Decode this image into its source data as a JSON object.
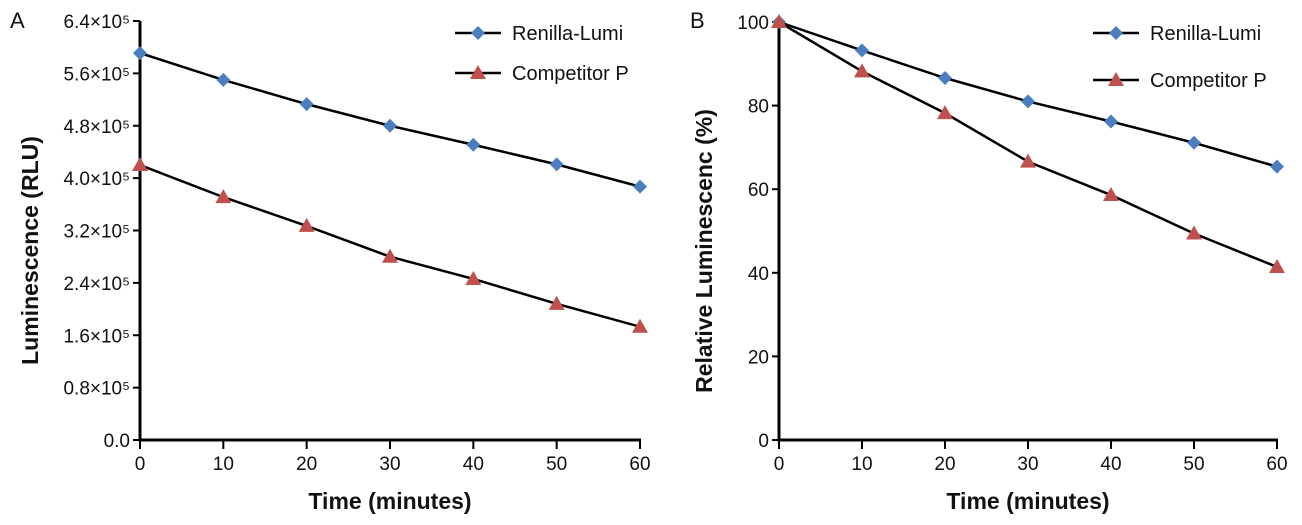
{
  "chart_data": [
    {
      "type": "line",
      "panel_label": "A",
      "xlabel": "Time (minutes)",
      "ylabel": "Luminescence (RLU)",
      "x": [
        0,
        10,
        20,
        30,
        40,
        50,
        60
      ],
      "xlim": [
        0,
        60
      ],
      "ylim": [
        0,
        640000
      ],
      "x_ticks": [
        "0",
        "10",
        "20",
        "30",
        "40",
        "50",
        "60"
      ],
      "y_tick_values": [
        0,
        80000,
        160000,
        240000,
        320000,
        400000,
        480000,
        560000,
        640000
      ],
      "y_ticks": [
        "0.0",
        "0.8×10⁵",
        "1.6×10⁵",
        "2.4×10⁵",
        "3.2×10⁵",
        "4.0×10⁵",
        "4.8×10⁵",
        "5.6×10⁵",
        "6.4×10⁵"
      ],
      "grid": false,
      "legend_position": "top-right",
      "series": [
        {
          "name": "Renilla-Lumi",
          "marker": "diamond",
          "color": "#4a7ebf",
          "values": [
            591000,
            550000,
            513000,
            480000,
            451000,
            421000,
            387000
          ]
        },
        {
          "name": "Competitor P",
          "marker": "triangle",
          "color": "#c0504d",
          "values": [
            420000,
            371000,
            327000,
            280000,
            246000,
            208000,
            173000
          ]
        }
      ]
    },
    {
      "type": "line",
      "panel_label": "B",
      "xlabel": "Time (minutes)",
      "ylabel": "Relative Luminescenc (%)",
      "x": [
        0,
        10,
        20,
        30,
        40,
        50,
        60
      ],
      "xlim": [
        0,
        60
      ],
      "ylim": [
        0,
        100
      ],
      "x_ticks": [
        "0",
        "10",
        "20",
        "30",
        "40",
        "50",
        "60"
      ],
      "y_tick_values": [
        0,
        20,
        40,
        60,
        80,
        100
      ],
      "y_ticks": [
        "0",
        "20",
        "40",
        "60",
        "80",
        "100"
      ],
      "grid": false,
      "legend_position": "top-right",
      "series": [
        {
          "name": "Renilla-Lumi",
          "marker": "diamond",
          "color": "#4a7ebf",
          "values": [
            100,
            93.2,
            86.6,
            81.0,
            76.2,
            71.1,
            65.4
          ]
        },
        {
          "name": "Competitor P",
          "marker": "triangle",
          "color": "#c0504d",
          "values": [
            100,
            88.2,
            78.2,
            66.6,
            58.6,
            49.4,
            41.4
          ]
        }
      ]
    }
  ]
}
